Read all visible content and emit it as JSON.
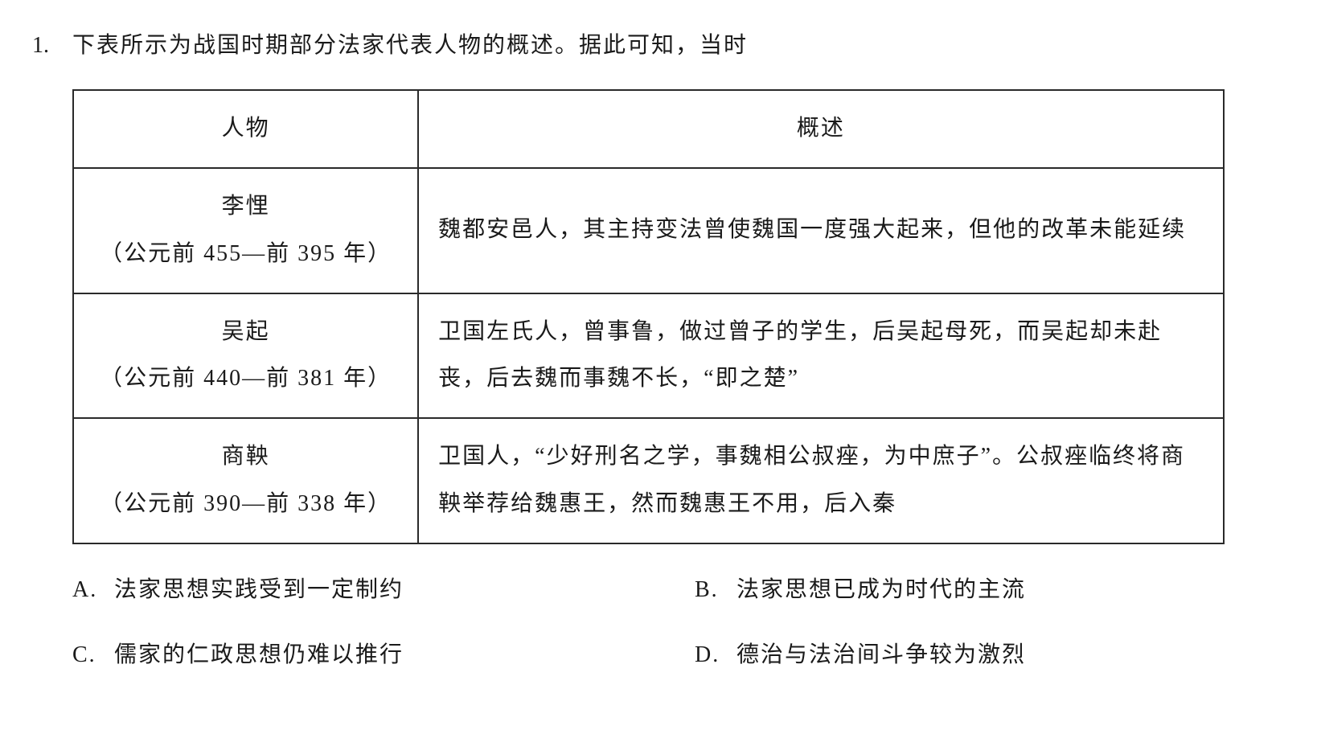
{
  "question_number": "1.",
  "stem": "下表所示为战国时期部分法家代表人物的概述。据此可知，当时",
  "table": {
    "columns": [
      "人物",
      "概述"
    ],
    "rows": [
      {
        "name": "李悝",
        "dates": "（公元前 455—前 395 年）",
        "desc": "魏都安邑人，其主持变法曾使魏国一度强大起来，但他的改革未能延续"
      },
      {
        "name": "吴起",
        "dates": "（公元前 440—前 381 年）",
        "desc": "卫国左氏人，曾事鲁，做过曾子的学生，后吴起母死，而吴起却未赴丧，后去魏而事魏不长，“即之楚”"
      },
      {
        "name": "商鞅",
        "dates": "（公元前 390—前 338 年）",
        "desc": "卫国人，“少好刑名之学，事魏相公叔痤，为中庶子”。公叔痤临终将商鞅举荐给魏惠王，然而魏惠王不用，后入秦"
      }
    ]
  },
  "options": {
    "A": {
      "label": "A.",
      "text": "法家思想实践受到一定制约"
    },
    "B": {
      "label": "B.",
      "text": "法家思想已成为时代的主流"
    },
    "C": {
      "label": "C.",
      "text": "儒家的仁政思想仍难以推行"
    },
    "D": {
      "label": "D.",
      "text": "德治与法治间斗争较为激烈"
    }
  },
  "style": {
    "fontsize_body": 28,
    "text_color": "#1a1a1a",
    "border_color": "#2a2a2a",
    "background_color": "#ffffff"
  }
}
